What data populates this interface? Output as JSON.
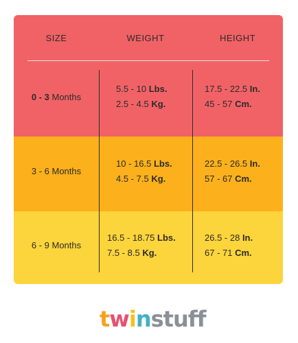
{
  "table": {
    "headers": {
      "size": "SIZE",
      "weight": "WEIGHT",
      "height": "HEIGHT"
    },
    "rows": [
      {
        "size_bold": "0 - 3",
        "size_rest": " Months",
        "weight_line1_num": "5.5 - 10 ",
        "weight_line1_unit": "Lbs.",
        "weight_line2_num": "2.5 - 4.5 ",
        "weight_line2_unit": "Kg.",
        "height_line1_num": "17.5 - 22.5 ",
        "height_line1_unit": "In.",
        "height_line2_num": "45 - 57 ",
        "height_line2_unit": "Cm.",
        "color": "#f16266"
      },
      {
        "size_label": "3 - 6 Months",
        "weight_line1_num": "10 - 16.5 ",
        "weight_line1_unit": "Lbs.",
        "weight_line2_num": "4.5 - 7.5 ",
        "weight_line2_unit": "Kg.",
        "height_line1_num": "22.5 - 26.5 ",
        "height_line1_unit": "In.",
        "height_line2_num": "57 - 67 ",
        "height_line2_unit": "Cm.",
        "color": "#fbb01c"
      },
      {
        "size_label": "6 - 9 Months",
        "weight_line1_num": "16.5 - 18.75 ",
        "weight_line1_unit": "Lbs.",
        "weight_line2_num": "7.5 - 8.5 ",
        "weight_line2_unit": "Kg.",
        "height_line1_num": "26.5 - 28 ",
        "height_line1_unit": "In.",
        "height_line2_num": "67 - 71 ",
        "height_line2_unit": "Cm.",
        "color": "#fcd43b"
      }
    ]
  },
  "logo": {
    "text": "twinstuff",
    "letters": [
      "t",
      "w",
      "i",
      "n",
      "s",
      "t",
      "u",
      "f",
      "f"
    ],
    "colors": [
      "#f4a21d",
      "#e9506f",
      "#f4c21d",
      "#40b0c8",
      "#8a9097",
      "#8a9097",
      "#8a9097",
      "#8a9097",
      "#8a9097"
    ]
  }
}
